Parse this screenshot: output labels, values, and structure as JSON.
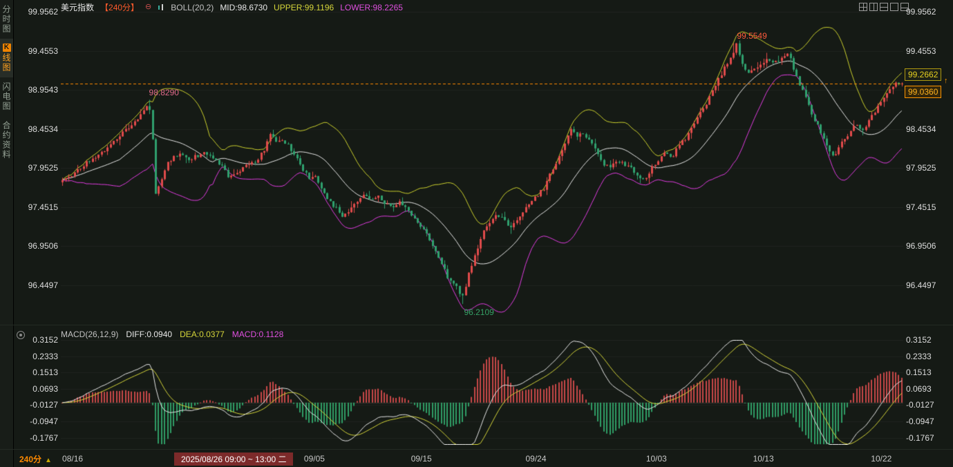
{
  "sidebar": {
    "tabs": [
      {
        "id": "time-chart",
        "label": "分时图"
      },
      {
        "id": "kline-chart",
        "badge": "K",
        "label": "线图",
        "active": true
      },
      {
        "id": "lightning-chart",
        "label": "闪电图"
      },
      {
        "id": "contract-info",
        "label": "合约资料"
      }
    ]
  },
  "header": {
    "symbol": "美元指数",
    "period": "【240分】",
    "remove_icon": "⊖",
    "indicator": "BOLL(20,2)",
    "mid": "MID:98.6730",
    "upper": "UPPER:99.1196",
    "lower": "LOWER:98.2265"
  },
  "macd_header": {
    "name": "MACD(26,12,9)",
    "diff": "DIFF:0.0940",
    "dea": "DEA:0.0377",
    "macd": "MACD:0.1128"
  },
  "price_tags": {
    "upper": "99.2662",
    "lower": "99.0360",
    "up_arrow": "↑"
  },
  "bottom": {
    "period": "240分",
    "period_arrow": "▲",
    "tooltip": "2025/08/26 09:00 ~ 13:00 二"
  },
  "colors": {
    "up_candle": "#e14b4b",
    "down_candle": "#2fa06e",
    "boll_mid": "#e8e8e8",
    "boll_upper": "#cdd22e",
    "boll_lower": "#e23ce2",
    "hist_pos": "#c84848",
    "hist_neg": "#2f9e66",
    "diff_line": "#e8e8e8",
    "dea_line": "#d6d63a",
    "last_price_line": "#ff8800"
  },
  "chart_data": {
    "type": "candlestick+macd",
    "symbol": "美元指数",
    "interval_minutes": 240,
    "bars": 280,
    "main": {
      "y_ticks": [
        99.9562,
        99.4553,
        98.9543,
        98.4534,
        97.9525,
        97.4515,
        96.9506,
        96.4497
      ],
      "boll": {
        "period": 20,
        "mult": 2,
        "mid": 98.673,
        "upper": 99.1196,
        "lower": 98.2265
      },
      "last_price": 99.036,
      "ref_price": 99.2662,
      "close_path": [
        [
          0.0,
          97.8
        ],
        [
          0.01,
          97.86
        ],
        [
          0.018,
          97.92
        ],
        [
          0.026,
          98.0
        ],
        [
          0.035,
          98.08
        ],
        [
          0.047,
          98.15
        ],
        [
          0.059,
          98.28
        ],
        [
          0.072,
          98.42
        ],
        [
          0.084,
          98.52
        ],
        [
          0.096,
          98.66
        ],
        [
          0.103,
          98.8
        ],
        [
          0.107,
          98.45
        ],
        [
          0.11,
          97.6
        ],
        [
          0.117,
          97.78
        ],
        [
          0.125,
          98.02
        ],
        [
          0.133,
          98.1
        ],
        [
          0.142,
          98.14
        ],
        [
          0.15,
          98.05
        ],
        [
          0.158,
          98.1
        ],
        [
          0.171,
          98.15
        ],
        [
          0.183,
          98.06
        ],
        [
          0.191,
          97.96
        ],
        [
          0.199,
          97.82
        ],
        [
          0.208,
          97.9
        ],
        [
          0.216,
          97.96
        ],
        [
          0.224,
          98.0
        ],
        [
          0.232,
          98.06
        ],
        [
          0.241,
          98.2
        ],
        [
          0.247,
          98.42
        ],
        [
          0.253,
          98.3
        ],
        [
          0.261,
          98.34
        ],
        [
          0.269,
          98.24
        ],
        [
          0.278,
          98.1
        ],
        [
          0.286,
          97.95
        ],
        [
          0.294,
          97.82
        ],
        [
          0.302,
          97.86
        ],
        [
          0.311,
          97.62
        ],
        [
          0.319,
          97.52
        ],
        [
          0.327,
          97.42
        ],
        [
          0.335,
          97.32
        ],
        [
          0.343,
          97.45
        ],
        [
          0.352,
          97.55
        ],
        [
          0.36,
          97.6
        ],
        [
          0.368,
          97.55
        ],
        [
          0.376,
          97.6
        ],
        [
          0.385,
          97.5
        ],
        [
          0.393,
          97.46
        ],
        [
          0.401,
          97.52
        ],
        [
          0.409,
          97.46
        ],
        [
          0.418,
          97.32
        ],
        [
          0.426,
          97.22
        ],
        [
          0.434,
          97.1
        ],
        [
          0.442,
          96.92
        ],
        [
          0.45,
          96.76
        ],
        [
          0.459,
          96.56
        ],
        [
          0.467,
          96.46
        ],
        [
          0.475,
          96.32
        ],
        [
          0.478,
          96.28
        ],
        [
          0.483,
          96.56
        ],
        [
          0.492,
          96.86
        ],
        [
          0.5,
          97.1
        ],
        [
          0.508,
          97.26
        ],
        [
          0.516,
          97.36
        ],
        [
          0.525,
          97.3
        ],
        [
          0.533,
          97.2
        ],
        [
          0.541,
          97.3
        ],
        [
          0.549,
          97.4
        ],
        [
          0.558,
          97.54
        ],
        [
          0.566,
          97.6
        ],
        [
          0.574,
          97.7
        ],
        [
          0.582,
          97.9
        ],
        [
          0.591,
          98.1
        ],
        [
          0.599,
          98.3
        ],
        [
          0.605,
          98.46
        ],
        [
          0.611,
          98.36
        ],
        [
          0.619,
          98.4
        ],
        [
          0.628,
          98.3
        ],
        [
          0.636,
          98.15
        ],
        [
          0.644,
          98.0
        ],
        [
          0.652,
          97.95
        ],
        [
          0.661,
          98.05
        ],
        [
          0.669,
          98.0
        ],
        [
          0.677,
          97.95
        ],
        [
          0.685,
          97.85
        ],
        [
          0.694,
          97.8
        ],
        [
          0.702,
          97.95
        ],
        [
          0.71,
          98.05
        ],
        [
          0.718,
          98.15
        ],
        [
          0.726,
          98.1
        ],
        [
          0.735,
          98.25
        ],
        [
          0.743,
          98.35
        ],
        [
          0.751,
          98.5
        ],
        [
          0.759,
          98.64
        ],
        [
          0.768,
          98.8
        ],
        [
          0.776,
          99.0
        ],
        [
          0.784,
          99.14
        ],
        [
          0.792,
          99.3
        ],
        [
          0.8,
          99.46
        ],
        [
          0.803,
          99.53
        ],
        [
          0.809,
          99.3
        ],
        [
          0.817,
          99.16
        ],
        [
          0.825,
          99.25
        ],
        [
          0.834,
          99.3
        ],
        [
          0.842,
          99.35
        ],
        [
          0.85,
          99.3
        ],
        [
          0.858,
          99.4
        ],
        [
          0.865,
          99.43
        ],
        [
          0.871,
          99.2
        ],
        [
          0.879,
          99.0
        ],
        [
          0.887,
          98.8
        ],
        [
          0.895,
          98.6
        ],
        [
          0.904,
          98.4
        ],
        [
          0.912,
          98.2
        ],
        [
          0.92,
          98.1
        ],
        [
          0.928,
          98.3
        ],
        [
          0.937,
          98.4
        ],
        [
          0.945,
          98.5
        ],
        [
          0.953,
          98.45
        ],
        [
          0.961,
          98.55
        ],
        [
          0.969,
          98.7
        ],
        [
          0.978,
          98.85
        ],
        [
          0.986,
          98.95
        ],
        [
          0.994,
          99.05
        ],
        [
          1.0,
          99.04
        ]
      ],
      "pins": [
        {
          "t": 0.103,
          "high": 98.829
        },
        {
          "t": 0.477,
          "low": 96.2109
        },
        {
          "t": 0.801,
          "high": 99.5549
        },
        {
          "t": 1.0,
          "close": 99.036
        }
      ]
    },
    "annotations": [
      {
        "text": "98.8290",
        "t": 0.103,
        "p": 98.829,
        "side": "above",
        "color": "#e06a8a"
      },
      {
        "text": "99.5549",
        "t": 0.801,
        "p": 99.5549,
        "side": "above",
        "color": "#ff5a3c"
      },
      {
        "text": "96.2109",
        "t": 0.477,
        "p": 96.2109,
        "side": "below",
        "color": "#35a065"
      }
    ],
    "macd": {
      "fast": 26,
      "mid_": 12,
      "signal": 9,
      "diff": 0.094,
      "dea": 0.0377,
      "macd": 0.1128,
      "y_ticks": [
        0.3152,
        0.2333,
        0.1513,
        0.0693,
        -0.0127,
        -0.0947,
        -0.1767
      ]
    },
    "x_dates": [
      {
        "label": "08/16",
        "t": 0.014
      },
      {
        "label": "09/05",
        "t": 0.301
      },
      {
        "label": "09/15",
        "t": 0.428
      },
      {
        "label": "09/24",
        "t": 0.564
      },
      {
        "label": "10/03",
        "t": 0.707
      },
      {
        "label": "10/13",
        "t": 0.834
      },
      {
        "label": "10/22",
        "t": 0.974
      }
    ]
  }
}
